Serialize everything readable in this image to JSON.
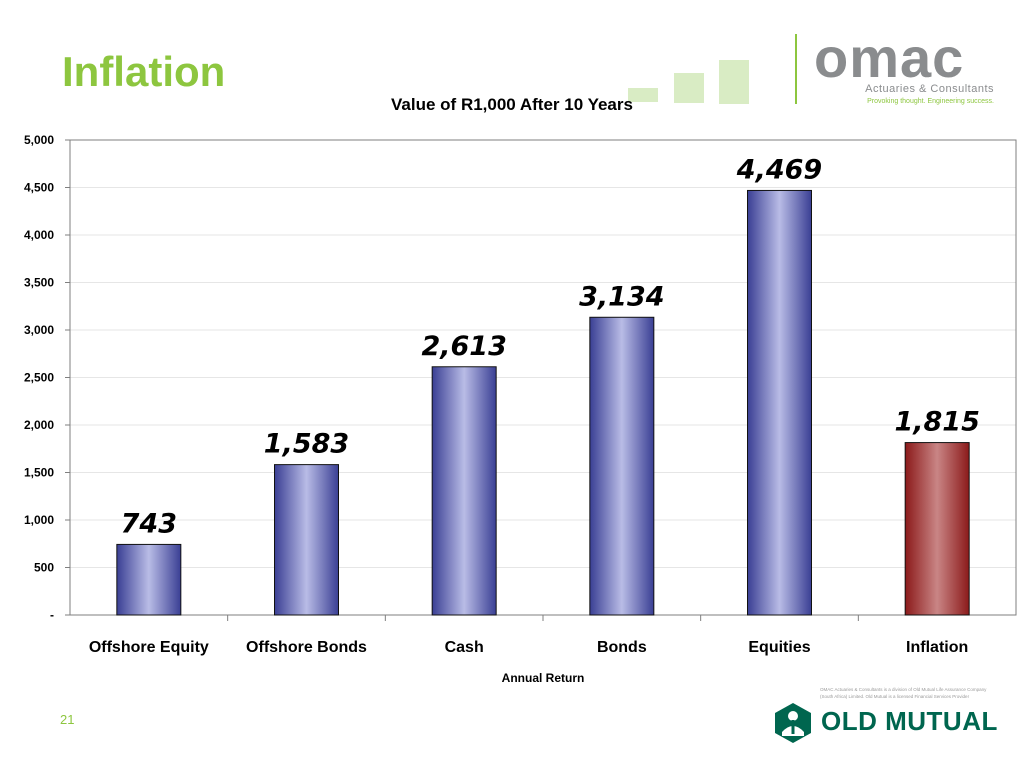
{
  "slide": {
    "title": "Inflation",
    "page_number": "21",
    "disclaimer": "OMAC Actuaries & Consultants is a division of Old Mutual Life Assurance Company (South Africa) Limited. Old Mutual is a licensed Financial Services Provider"
  },
  "brand": {
    "omac_word": "omac",
    "omac_tagline": "Actuaries & Consultants",
    "omac_slogan": "Provoking thought. Engineering success.",
    "old_mutual_word": "OLD MUTUAL",
    "colors": {
      "green": "#8dc63f",
      "grey": "#8a8c8e",
      "old_mutual_green": "#00664f"
    }
  },
  "chart_data": {
    "type": "bar",
    "title": "Value of R1,000 After 10 Years",
    "xlabel": "Annual Return",
    "ylabel": "",
    "categories": [
      "Offshore Equity",
      "Offshore Bonds",
      "Cash",
      "Bonds",
      "Equities",
      "Inflation"
    ],
    "values": [
      743,
      1583,
      2613,
      3134,
      4469,
      1815
    ],
    "data_labels": [
      "743",
      "1,583",
      "2,613",
      "3,134",
      "4,469",
      "1,815"
    ],
    "ylim": [
      0,
      5000
    ],
    "y_ticks": [
      0,
      500,
      1000,
      1500,
      2000,
      2500,
      3000,
      3500,
      4000,
      4500,
      5000
    ],
    "y_tick_labels": [
      "-",
      "500",
      "1,000",
      "1,500",
      "2,000",
      "2,500",
      "3,000",
      "3,500",
      "4,000",
      "4,500",
      "5,000"
    ],
    "grid": true,
    "bar_colors": [
      "#3a3f94",
      "#3a3f94",
      "#3a3f94",
      "#3a3f94",
      "#3a3f94",
      "#8b1a1a"
    ],
    "bar_highlight_colors": [
      "#b9bce6",
      "#b9bce6",
      "#b9bce6",
      "#b9bce6",
      "#b9bce6",
      "#c98585"
    ]
  }
}
